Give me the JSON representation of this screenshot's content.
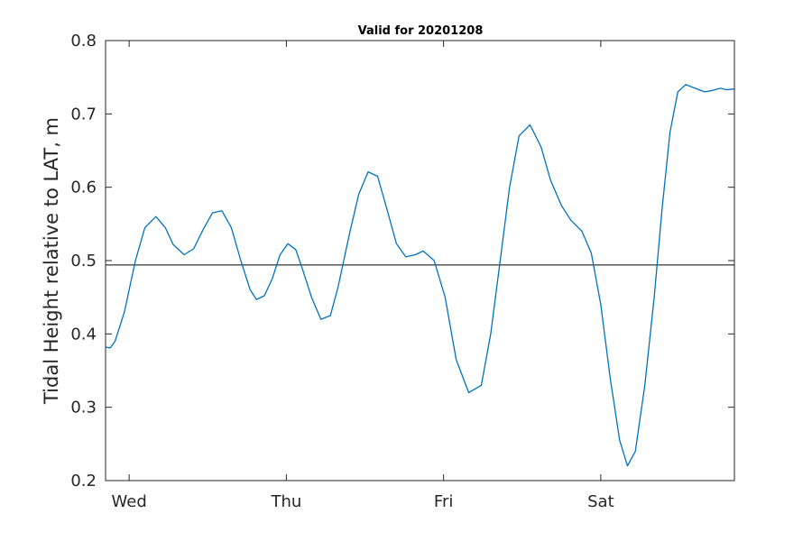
{
  "chart_data": {
    "type": "line",
    "title": "Valid for 20201208",
    "xlabel": "",
    "ylabel": "Tidal Height relative to LAT, m",
    "ylim": [
      0.2,
      0.8
    ],
    "yticks": [
      0.2,
      0.3,
      0.4,
      0.5,
      0.6,
      0.7,
      0.8
    ],
    "ytick_labels": [
      "0.2",
      "0.3",
      "0.4",
      "0.5",
      "0.6",
      "0.7",
      "0.8"
    ],
    "xlim_days": [
      -0.15,
      3.85
    ],
    "xticks": [
      {
        "label": "Wed",
        "day": 0
      },
      {
        "label": "Thu",
        "day": 1
      },
      {
        "label": "Fri",
        "day": 2
      },
      {
        "label": "Sat",
        "day": 3
      }
    ],
    "reference_line": {
      "y": 0.494
    },
    "grid": false,
    "series": [
      {
        "color": "#0072BD",
        "x": [
          -0.15,
          -0.12,
          -0.09,
          -0.03,
          0.04,
          0.1,
          0.17,
          0.23,
          0.28,
          0.35,
          0.41,
          0.47,
          0.53,
          0.59,
          0.65,
          0.71,
          0.77,
          0.81,
          0.86,
          0.91,
          0.96,
          1.01,
          1.06,
          1.1,
          1.16,
          1.22,
          1.28,
          1.33,
          1.4,
          1.46,
          1.52,
          1.58,
          1.64,
          1.7,
          1.76,
          1.82,
          1.87,
          1.94,
          2.01,
          2.08,
          2.16,
          2.24,
          2.3,
          2.36,
          2.42,
          2.48,
          2.55,
          2.62,
          2.68,
          2.75,
          2.81,
          2.88,
          2.94,
          3.0,
          3.06,
          3.12,
          3.17,
          3.22,
          3.28,
          3.34,
          3.39,
          3.44,
          3.49,
          3.54,
          3.6,
          3.66,
          3.71,
          3.76,
          3.8,
          3.85
        ],
        "y": [
          0.382,
          0.381,
          0.39,
          0.43,
          0.5,
          0.545,
          0.56,
          0.545,
          0.522,
          0.508,
          0.516,
          0.542,
          0.565,
          0.568,
          0.545,
          0.5,
          0.46,
          0.447,
          0.452,
          0.475,
          0.508,
          0.523,
          0.515,
          0.49,
          0.45,
          0.42,
          0.425,
          0.465,
          0.535,
          0.59,
          0.621,
          0.615,
          0.57,
          0.523,
          0.505,
          0.508,
          0.513,
          0.5,
          0.45,
          0.365,
          0.32,
          0.33,
          0.4,
          0.5,
          0.6,
          0.67,
          0.685,
          0.655,
          0.61,
          0.575,
          0.555,
          0.54,
          0.51,
          0.44,
          0.34,
          0.255,
          0.22,
          0.24,
          0.33,
          0.45,
          0.57,
          0.675,
          0.73,
          0.74,
          0.735,
          0.73,
          0.732,
          0.735,
          0.733,
          0.734
        ]
      }
    ]
  }
}
